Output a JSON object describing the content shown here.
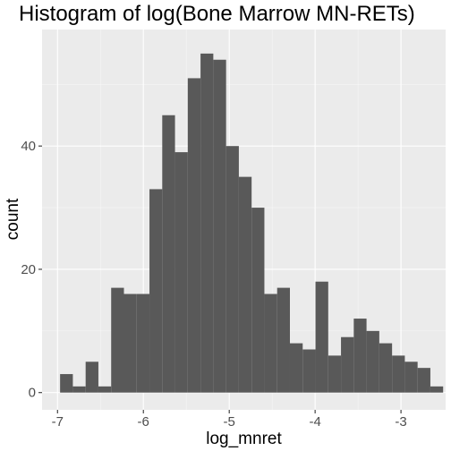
{
  "chart_data": {
    "type": "bar",
    "title": "Histogram of log(Bone Marrow MN-RETs)",
    "xlabel": "log_mnret",
    "ylabel": "count",
    "xlim": [
      -7.18,
      -2.48
    ],
    "ylim": [
      -2.8,
      58.9
    ],
    "x_ticks": [
      -7,
      -6,
      -5,
      -4,
      -3
    ],
    "x_tick_labels": [
      "-7",
      "-6",
      "-5",
      "-4",
      "-3"
    ],
    "y_ticks": [
      0,
      20,
      40
    ],
    "y_tick_labels": [
      "0",
      "20",
      "40"
    ],
    "grid": true,
    "bin_width": 0.1487,
    "first_bin_start": -6.97,
    "counts": [
      3,
      1,
      5,
      1,
      17,
      16,
      16,
      33,
      45,
      39,
      51,
      55,
      54,
      40,
      35,
      30,
      16,
      17,
      8,
      7,
      18,
      6,
      9,
      12,
      10,
      8,
      6,
      5,
      4,
      1
    ],
    "colors": {
      "panel_background": "#ebebeb",
      "grid_major": "#ffffff",
      "bar_fill": "#595959",
      "tick_label": "#4d4d4d",
      "tick_mark": "#333333"
    }
  }
}
